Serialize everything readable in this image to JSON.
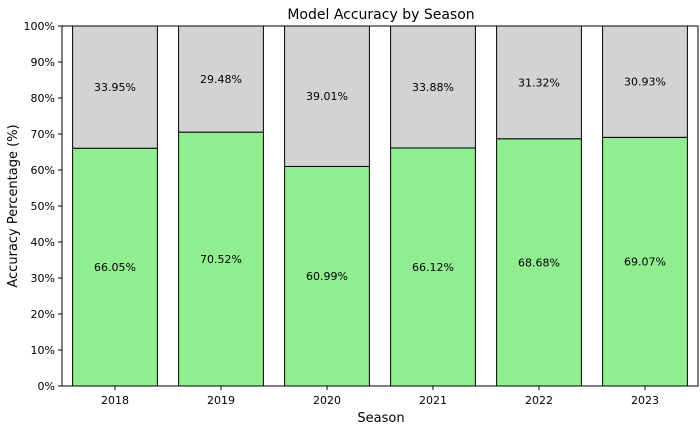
{
  "chart_data": {
    "type": "bar",
    "stacked": true,
    "title": "Model Accuracy by Season",
    "xlabel": "Season",
    "ylabel": "Accuracy Percentage (%)",
    "ylim": [
      0,
      100
    ],
    "yticks": [
      "0%",
      "10%",
      "20%",
      "30%",
      "40%",
      "50%",
      "60%",
      "70%",
      "80%",
      "90%",
      "100%"
    ],
    "categories": [
      "2018",
      "2019",
      "2020",
      "2021",
      "2022",
      "2023"
    ],
    "grid": false,
    "series": [
      {
        "values": [
          66.05,
          70.52,
          60.99,
          66.12,
          68.68,
          69.07
        ],
        "labels": [
          "66.05%",
          "70.52%",
          "60.99%",
          "66.12%",
          "68.68%",
          "69.07%"
        ],
        "color": "#90ee90"
      },
      {
        "values": [
          33.95,
          29.48,
          39.01,
          33.88,
          31.32,
          30.93
        ],
        "labels": [
          "33.95%",
          "29.48%",
          "39.01%",
          "33.88%",
          "31.32%",
          "30.93%"
        ],
        "color": "#d3d3d3"
      }
    ]
  }
}
